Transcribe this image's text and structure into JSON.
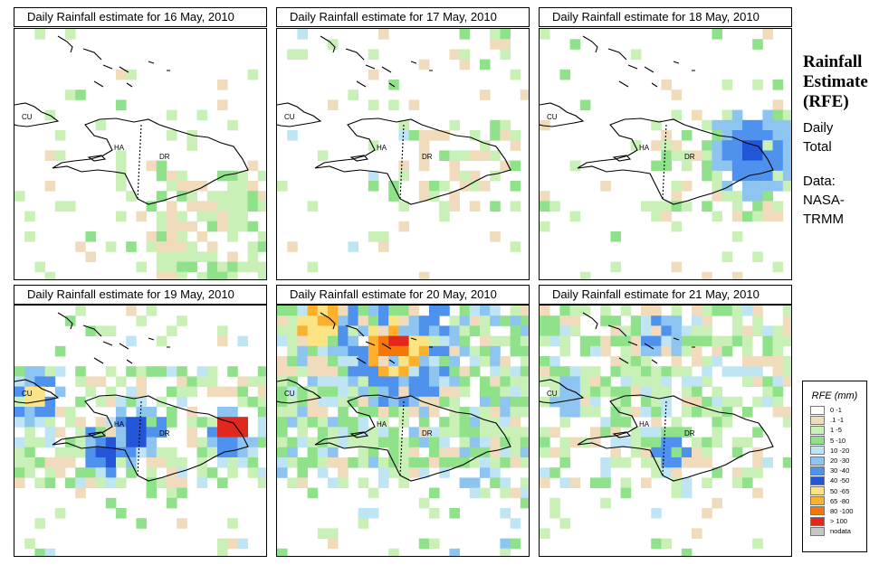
{
  "sidebar": {
    "title": [
      "Rainfall",
      "Estimate",
      "(RFE)"
    ],
    "period": [
      "Daily",
      "Total"
    ],
    "source": [
      "Data:",
      "NASA-",
      "TRMM"
    ]
  },
  "panels": [
    {
      "title": "Daily Rainfall estimate for  16 May, 2010"
    },
    {
      "title": "Daily Rainfall estimate for  17 May, 2010"
    },
    {
      "title": "Daily Rainfall estimate for  18 May, 2010"
    },
    {
      "title": "Daily Rainfall estimate for  19 May, 2010"
    },
    {
      "title": "Daily Rainfall estimate for  20 May, 2010"
    },
    {
      "title": "Daily Rainfall estimate for  21 May, 2010"
    }
  ],
  "map_labels": {
    "cuba": "CU",
    "haiti": "HA",
    "dominican_republic": "DR"
  },
  "legend": {
    "title": "RFE (mm)",
    "items": [
      {
        "label": "0 -1",
        "color": "#ffffff"
      },
      {
        "label": ".1 -1",
        "color": "#f0dcbc"
      },
      {
        "label": "1 -5",
        "color": "#c9f0b6"
      },
      {
        "label": "5 -10",
        "color": "#90e28a"
      },
      {
        "label": "10 -20",
        "color": "#bfe5f5"
      },
      {
        "label": "20 -30",
        "color": "#8ec5f0"
      },
      {
        "label": "30 -40",
        "color": "#4f92ee"
      },
      {
        "label": "40 -50",
        "color": "#2356d6"
      },
      {
        "label": "50 -65",
        "color": "#fce384"
      },
      {
        "label": "65 -80",
        "color": "#fdb02c"
      },
      {
        "label": "80 -100",
        "color": "#f47808"
      },
      {
        "label": "> 100",
        "color": "#e0281c"
      },
      {
        "label": "nodata",
        "color": "#c6c6c6"
      }
    ]
  }
}
